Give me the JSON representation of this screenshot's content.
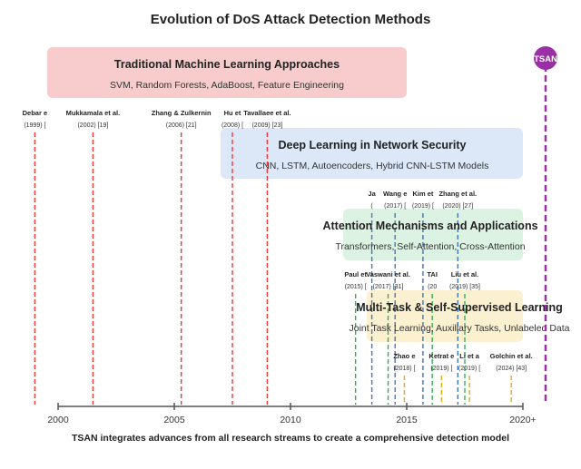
{
  "title": "Evolution of DoS Attack Detection Methods",
  "footer": "TSAN integrates advances from all research streams to create a comprehensive detection model",
  "tsan_label": "TSAN",
  "axis": {
    "ticks": [
      {
        "value": 2000,
        "label": "2000"
      },
      {
        "value": 2005,
        "label": "2005"
      },
      {
        "value": 2010,
        "label": "2010"
      },
      {
        "value": 2015,
        "label": "2015"
      },
      {
        "value": 2020,
        "label": "2020+"
      }
    ]
  },
  "streams": [
    {
      "title": "Traditional Machine Learning Approaches",
      "subtitle": "SVM, Random Forests, AdaBoost, Feature Engineering",
      "fill": "#f8cccc"
    },
    {
      "title": "Deep Learning in Network Security",
      "subtitle": "CNN, LSTM, Autoencoders, Hybrid CNN-LSTM Models",
      "fill": "#dce8f8"
    },
    {
      "title": "Attention Mechanisms and Applications",
      "subtitle": "Transformers, Self-Attention, Cross-Attention",
      "fill": "#dcf2e2"
    },
    {
      "title": "Multi-Task & Self-Supervised Learning",
      "subtitle": "Joint Task Learning, Auxiliary Tasks, Unlabeled Data",
      "fill": "#fbf0cf"
    }
  ],
  "milestones": [
    {
      "name": "Debar e",
      "ref": "(1999) [",
      "year": 1999.0,
      "group": 0,
      "color": "#e03c3c"
    },
    {
      "name": "Mukkamala et al.",
      "ref": "(2002) [19]",
      "year": 2001.5,
      "group": 0,
      "color": "#e03c3c"
    },
    {
      "name": "Zhang & Zulkernin",
      "ref": "(2006) [21]",
      "year": 2005.3,
      "group": 0,
      "color": "#e03c3c"
    },
    {
      "name": "Hu et",
      "ref": "(2008) [",
      "year": 2007.5,
      "group": 0,
      "color": "#e03c3c"
    },
    {
      "name": "Tavallaee et al.",
      "ref": "(2009) [23]",
      "year": 2009.0,
      "group": 0,
      "color": "#e03c3c"
    },
    {
      "name": "Ja",
      "ref": "(",
      "year": 2013.5,
      "group": 1,
      "color": "#3a78c8"
    },
    {
      "name": "Wang e",
      "ref": "(2017) [",
      "year": 2014.5,
      "group": 1,
      "color": "#3a78c8"
    },
    {
      "name": "Kim et",
      "ref": "(2019) [",
      "year": 2015.7,
      "group": 1,
      "color": "#3a78c8"
    },
    {
      "name": "Zhang et al.",
      "ref": "(2020) [27]",
      "year": 2017.2,
      "group": 1,
      "color": "#3a78c8"
    },
    {
      "name": "Paul et",
      "ref": "(2015) [",
      "year": 2012.8,
      "group": 2,
      "color": "#3aaa5a"
    },
    {
      "name": "Vaswani et al.",
      "ref": "(2017) [31]",
      "year": 2014.2,
      "group": 2,
      "color": "#3aaa5a"
    },
    {
      "name": "TAI",
      "ref": "(20",
      "year": 2016.1,
      "group": 2,
      "color": "#3aaa5a"
    },
    {
      "name": "Liu et al.",
      "ref": "(2019) [35]",
      "year": 2017.5,
      "group": 2,
      "color": "#3aaa5a"
    },
    {
      "name": "Zhao e",
      "ref": "(2018) [",
      "year": 2014.9,
      "group": 3,
      "color": "#e0a820"
    },
    {
      "name": "Ketrat e",
      "ref": "(2019) [",
      "year": 2016.5,
      "group": 3,
      "color": "#e0a820"
    },
    {
      "name": "Li et a",
      "ref": "(2019) [",
      "year": 2017.7,
      "group": 3,
      "color": "#e0a820"
    },
    {
      "name": "Golchin et al.",
      "ref": "(2024) [43]",
      "year": 2019.5,
      "group": 3,
      "color": "#e0a820"
    }
  ]
}
